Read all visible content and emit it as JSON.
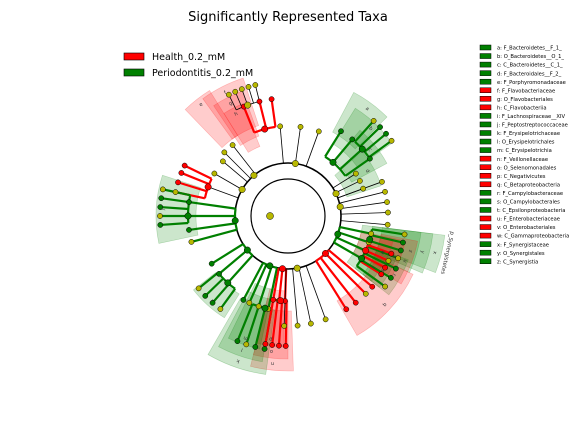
{
  "chart_data": {
    "type": "cladogram",
    "title": "Significantly Represented Taxa",
    "legend": [
      {
        "name": "Health_0.2_mM",
        "color": "#ff0000"
      },
      {
        "name": "Periodontitis_0.2_mM",
        "color": "#008000"
      }
    ],
    "colors": {
      "health": "#ff0000",
      "perio": "#008000",
      "neutral": "#b8b800",
      "health_shade": "#ff0000",
      "perio_shade": "#008000"
    },
    "taxa": [
      {
        "key": "a",
        "name": "a: F_Bacteroidetes__F_1_",
        "group": "perio"
      },
      {
        "key": "b",
        "name": "b: O_Bacteroidetes__O_1_",
        "group": "perio"
      },
      {
        "key": "c",
        "name": "c: C_Bacteroidetes__C_1_",
        "group": "perio"
      },
      {
        "key": "d",
        "name": "d: F_Bacteroidales__F_2_",
        "group": "perio"
      },
      {
        "key": "e",
        "name": "e: F_Porphyromonadaceae",
        "group": "perio"
      },
      {
        "key": "f",
        "name": "f: F_Flavobacteriaceae",
        "group": "health"
      },
      {
        "key": "g",
        "name": "g: O_Flavobacteriales",
        "group": "health"
      },
      {
        "key": "h",
        "name": "h: C_Flavobacteriia",
        "group": "health"
      },
      {
        "key": "i",
        "name": "i: F_Lachnospiraceae__XIV",
        "group": "perio"
      },
      {
        "key": "j",
        "name": "j: F_Peptostreptococcaceae",
        "group": "perio"
      },
      {
        "key": "k",
        "name": "k: F_Erysipelotrichaceae",
        "group": "perio"
      },
      {
        "key": "l",
        "name": "l: O_Erysipelotrichales",
        "group": "perio"
      },
      {
        "key": "m",
        "name": "m: C_Erysipelotrichia",
        "group": "perio"
      },
      {
        "key": "n",
        "name": "n: F_Veillonellaceae",
        "group": "health"
      },
      {
        "key": "o",
        "name": "o: O_Selenomonadales",
        "group": "health"
      },
      {
        "key": "p",
        "name": "p: C_Negativicutes",
        "group": "health"
      },
      {
        "key": "q",
        "name": "q: C_Betaproteobacteria",
        "group": "health"
      },
      {
        "key": "r",
        "name": "r: F_Campylobacteraceae",
        "group": "perio"
      },
      {
        "key": "s",
        "name": "s: O_Campylobacterales",
        "group": "perio"
      },
      {
        "key": "t",
        "name": "t: C_Epsilonproteobacteria",
        "group": "perio"
      },
      {
        "key": "u",
        "name": "u: F_Enterobacteriaceae",
        "group": "health"
      },
      {
        "key": "v",
        "name": "v: O_Enterobacteriales",
        "group": "health"
      },
      {
        "key": "w",
        "name": "w: C_Gammaproteobacteria",
        "group": "health"
      },
      {
        "key": "x",
        "name": "x: F_Synergistaceae",
        "group": "perio"
      },
      {
        "key": "y",
        "name": "y: O_Synergistales",
        "group": "perio"
      },
      {
        "key": "z",
        "name": "z: C_Synergistia",
        "group": "perio"
      }
    ],
    "sector_labels": [
      "a",
      "b",
      "c",
      "d",
      "e",
      "f",
      "g",
      "h",
      "i",
      "j",
      "k",
      "l",
      "m",
      "n",
      "o",
      "p",
      "q",
      "r",
      "s",
      "t",
      "u",
      "v",
      "w",
      "x",
      "y",
      "z"
    ],
    "outer_labels": [
      "p_Synergistetes"
    ]
  }
}
